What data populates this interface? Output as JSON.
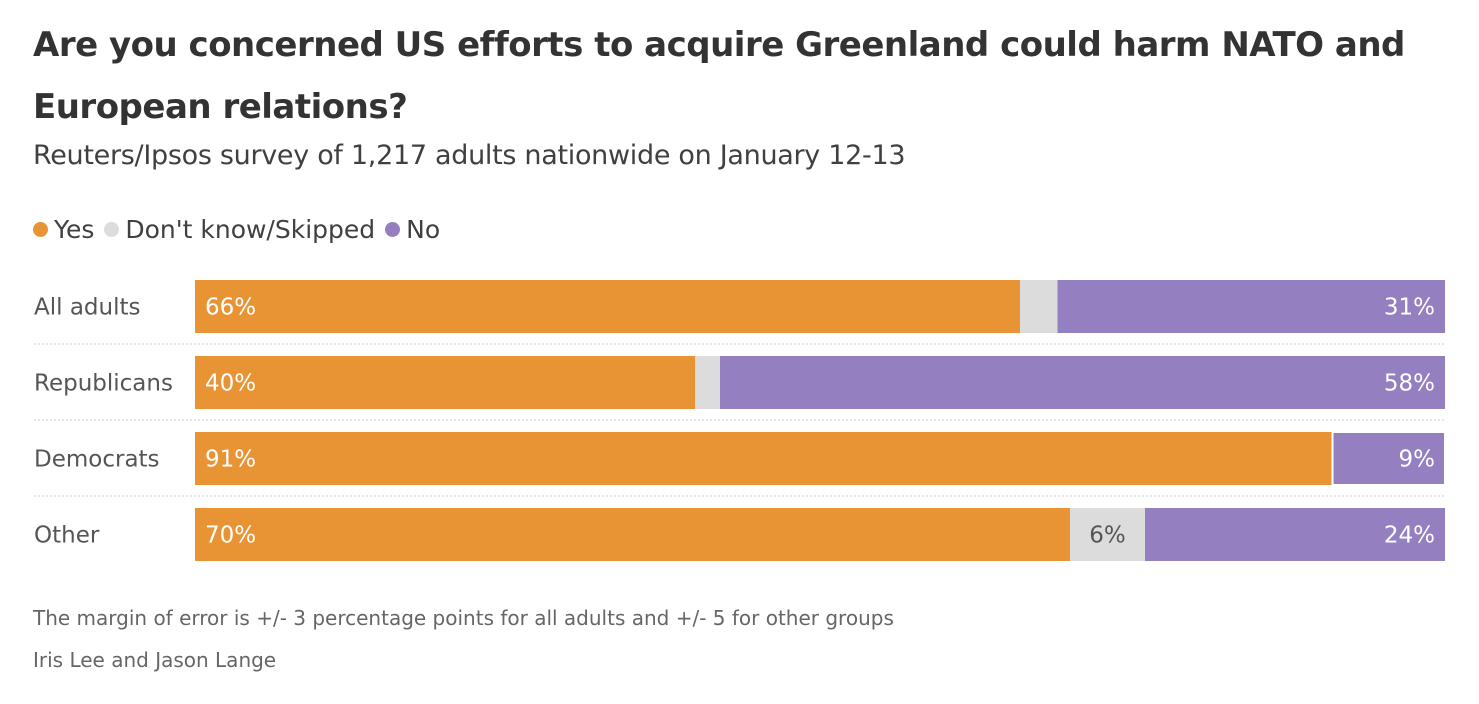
{
  "title": "Are you concerned US efforts to acquire Greenland could harm NATO and European relations?",
  "subtitle": "Reuters/Ipsos survey of 1,217 adults nationwide on January 12-13",
  "legend": [
    {
      "label": "Yes",
      "color": "#e99434"
    },
    {
      "label": "Don't know/Skipped",
      "color": "#dcdcdc"
    },
    {
      "label": "No",
      "color": "#9480c0"
    }
  ],
  "chart_data": {
    "type": "bar",
    "orientation": "horizontal",
    "stacked": true,
    "categories": [
      "All adults",
      "Republicans",
      "Democrats",
      "Other"
    ],
    "series": [
      {
        "name": "Yes",
        "color": "#e99434",
        "values": [
          66,
          40,
          91,
          70
        ],
        "labels": [
          "66%",
          "40%",
          "91%",
          "70%"
        ]
      },
      {
        "name": "Don't know/Skipped",
        "color": "#dcdcdc",
        "values": [
          3,
          2,
          0,
          6
        ],
        "labels": [
          "",
          "",
          "",
          "6%"
        ]
      },
      {
        "name": "No",
        "color": "#9480c0",
        "values": [
          31,
          58,
          9,
          24
        ],
        "labels": [
          "31%",
          "58%",
          "9%",
          "24%"
        ]
      }
    ],
    "xlim": [
      0,
      100
    ]
  },
  "notes": {
    "margin": "The margin of error is +/- 3 percentage points for all adults and +/- 5 for other groups",
    "credit": "Iris Lee and Jason Lange"
  }
}
